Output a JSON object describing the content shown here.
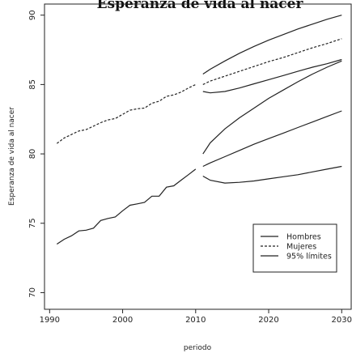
{
  "chart_data": {
    "type": "line",
    "title": "Esperanza de vida al nacer",
    "xlabel": "periodo",
    "ylabel": "Esperanza de vida al nacer",
    "xlim": [
      1989.3,
      2031.3
    ],
    "ylim": [
      68.8,
      90.8
    ],
    "xticks": [
      1990,
      2000,
      2010,
      2020,
      2030
    ],
    "yticks": [
      70,
      75,
      80,
      85,
      90
    ],
    "legend_position": "bottom-right",
    "legend": [
      {
        "name": "Hombres",
        "style": "solid"
      },
      {
        "name": "Mujeres",
        "style": "dashed"
      },
      {
        "name": "95% límites",
        "style": "solid"
      }
    ],
    "historical": {
      "x": [
        1991,
        1992,
        1993,
        1994,
        1995,
        1996,
        1997,
        1998,
        1999,
        2000,
        2001,
        2002,
        2003,
        2004,
        2005,
        2006,
        2007,
        2008,
        2009,
        2010
      ],
      "hombres": [
        73.5,
        73.85,
        74.1,
        74.45,
        74.5,
        74.65,
        75.2,
        75.35,
        75.45,
        75.9,
        76.3,
        76.4,
        76.5,
        76.95,
        76.95,
        77.6,
        77.7,
        78.1,
        78.5,
        78.9
      ],
      "mujeres": [
        80.75,
        81.15,
        81.4,
        81.65,
        81.75,
        82.0,
        82.25,
        82.45,
        82.55,
        82.85,
        83.15,
        83.25,
        83.3,
        83.65,
        83.8,
        84.15,
        84.25,
        84.45,
        84.75,
        85.0
      ]
    },
    "forecast": {
      "x": [
        2011,
        2012,
        2014,
        2016,
        2018,
        2020,
        2022,
        2024,
        2026,
        2028,
        2030
      ],
      "mujeres": [
        85.0,
        85.25,
        85.6,
        85.95,
        86.3,
        86.65,
        86.95,
        87.3,
        87.65,
        87.95,
        88.3
      ],
      "mujeres_upper": [
        85.75,
        86.1,
        86.7,
        87.25,
        87.75,
        88.2,
        88.6,
        89.0,
        89.35,
        89.7,
        90.0
      ],
      "mujeres_lower": [
        84.5,
        84.4,
        84.5,
        84.75,
        85.05,
        85.35,
        85.65,
        85.95,
        86.25,
        86.5,
        86.8
      ],
      "hombres": [
        79.1,
        79.35,
        79.8,
        80.25,
        80.7,
        81.1,
        81.5,
        81.9,
        82.3,
        82.7,
        83.1
      ],
      "hombres_upper": [
        80.0,
        80.8,
        81.8,
        82.6,
        83.3,
        84.0,
        84.6,
        85.2,
        85.75,
        86.25,
        86.7
      ],
      "hombres_lower": [
        78.4,
        78.1,
        77.9,
        77.95,
        78.05,
        78.2,
        78.35,
        78.5,
        78.7,
        78.9,
        79.1
      ]
    }
  }
}
